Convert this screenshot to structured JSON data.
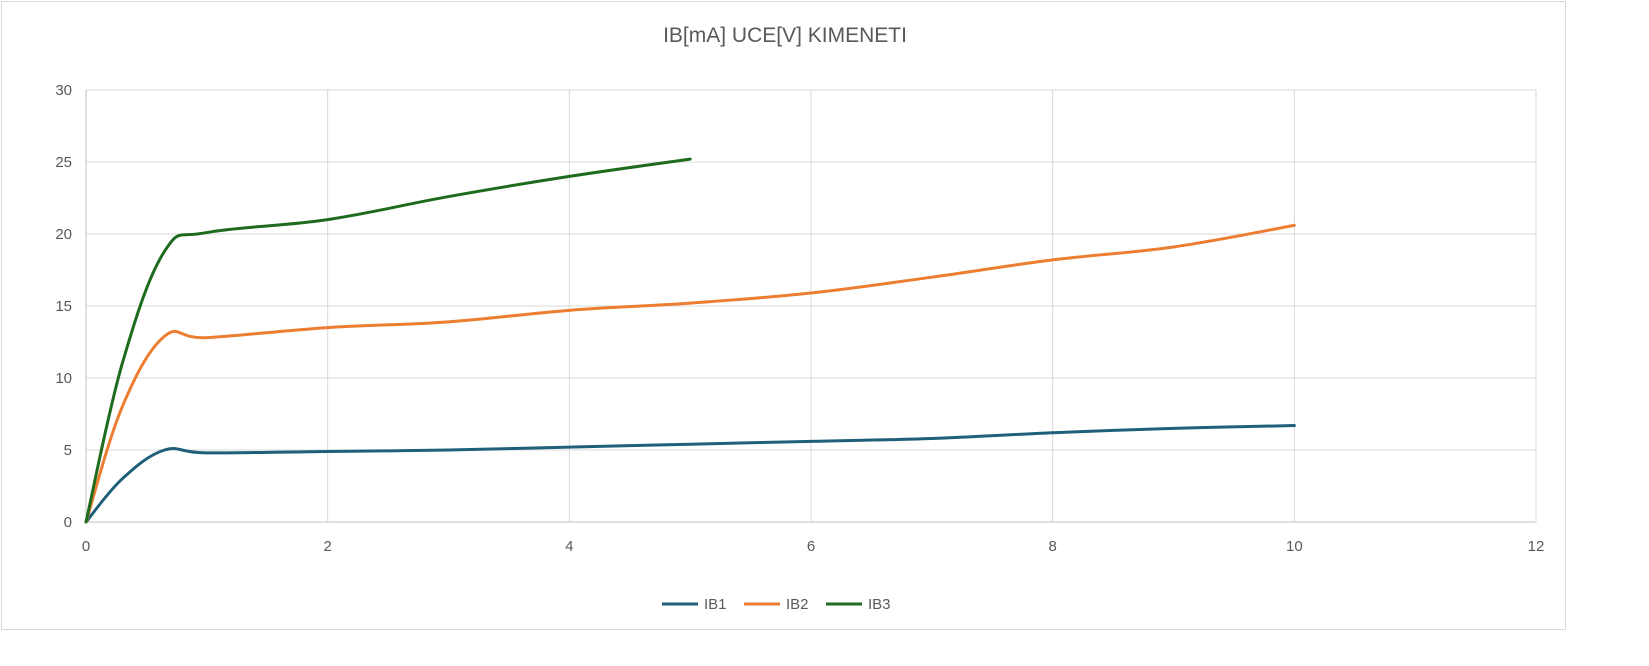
{
  "chart_data": {
    "type": "line",
    "title": "IB[mA]  UCE[V]   KIMENETI",
    "xlabel": "",
    "ylabel": "",
    "xlim": [
      0,
      12
    ],
    "ylim": [
      0,
      30
    ],
    "x_ticks": [
      "0",
      "2",
      "4",
      "6",
      "8",
      "10",
      "12"
    ],
    "y_ticks": [
      "0",
      "5",
      "10",
      "15",
      "20",
      "25",
      "30"
    ],
    "grid": true,
    "smooth": true,
    "legend_position": "bottom",
    "series": [
      {
        "name": "IB1",
        "color": "#1f5f7a",
        "x": [
          0,
          0.3,
          0.65,
          1,
          2,
          3,
          4,
          5,
          6,
          7,
          8,
          9,
          10
        ],
        "y": [
          0,
          3,
          5,
          4.8,
          4.9,
          5.0,
          5.2,
          5.4,
          5.6,
          5.8,
          6.2,
          6.5,
          6.7
        ]
      },
      {
        "name": "IB2",
        "color": "#ed7d31",
        "x": [
          0,
          0.3,
          0.65,
          1,
          2,
          3,
          4,
          5,
          6,
          7,
          8,
          9,
          10
        ],
        "y": [
          0,
          8,
          12.9,
          12.8,
          13.5,
          13.9,
          14.7,
          15.2,
          15.9,
          17.0,
          18.2,
          19.1,
          20.6
        ]
      },
      {
        "name": "IB3",
        "color": "#1e6b1e",
        "x": [
          0,
          0.3,
          0.65,
          1,
          2,
          3,
          4,
          5
        ],
        "y": [
          0,
          11,
          18.8,
          20.1,
          21.0,
          22.6,
          24.0,
          25.2
        ]
      }
    ]
  }
}
